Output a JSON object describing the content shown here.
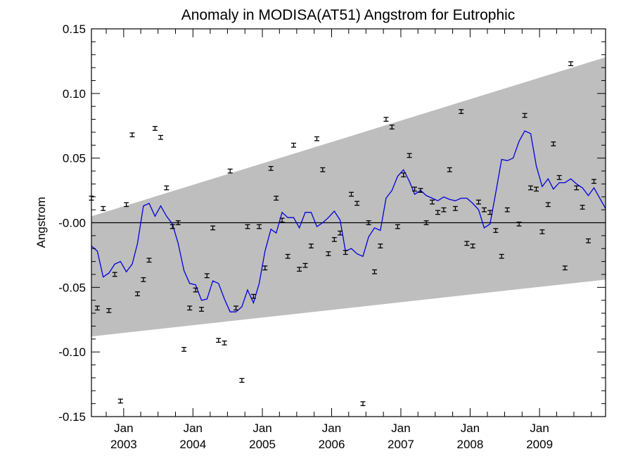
{
  "chart_data": {
    "type": "scatter",
    "title": "Anomaly in MODISA(AT51) Angstrom for Eutrophic",
    "xlabel": "",
    "ylabel": "Angstrom",
    "xlim": [
      "2002-07-15",
      "2009-12-15"
    ],
    "ylim": [
      -0.15,
      0.15
    ],
    "grid": false,
    "y_ticks": [
      {
        "value": 0.15,
        "label": "0.15"
      },
      {
        "value": 0.1,
        "label": "0.10"
      },
      {
        "value": 0.05,
        "label": "0.05"
      },
      {
        "value": 0.0,
        "label": "-0.00"
      },
      {
        "value": -0.05,
        "label": "-0.05"
      },
      {
        "value": -0.1,
        "label": "-0.10"
      },
      {
        "value": -0.15,
        "label": "-0.15"
      }
    ],
    "x_ticks": [
      {
        "date": "2003-01-01",
        "month": "Jan",
        "year": "2003"
      },
      {
        "date": "2004-01-01",
        "month": "Jan",
        "year": "2004"
      },
      {
        "date": "2005-01-01",
        "month": "Jan",
        "year": "2005"
      },
      {
        "date": "2006-01-01",
        "month": "Jan",
        "year": "2006"
      },
      {
        "date": "2007-01-01",
        "month": "Jan",
        "year": "2007"
      },
      {
        "date": "2008-01-01",
        "month": "Jan",
        "year": "2008"
      },
      {
        "date": "2009-01-01",
        "month": "Jan",
        "year": "2009"
      }
    ],
    "band": {
      "start": {
        "date": "2002-07-15",
        "upper": 0.005,
        "lower": -0.088
      },
      "end": {
        "date": "2009-12-15",
        "upper": 0.128,
        "lower": -0.044
      },
      "color": "#bebebe"
    },
    "zero_line": 0.0,
    "series": [
      {
        "kind": "points_with_error_bars",
        "error": 0.0015,
        "color": "#000000",
        "points": [
          {
            "x": "2002-07-15",
            "y": 0.019
          },
          {
            "x": "2002-08-15",
            "y": -0.066
          },
          {
            "x": "2002-09-15",
            "y": 0.011
          },
          {
            "x": "2002-10-15",
            "y": -0.068
          },
          {
            "x": "2002-11-15",
            "y": -0.04
          },
          {
            "x": "2002-12-15",
            "y": -0.138
          },
          {
            "x": "2003-01-15",
            "y": 0.014
          },
          {
            "x": "2003-02-15",
            "y": 0.068
          },
          {
            "x": "2003-03-15",
            "y": -0.055
          },
          {
            "x": "2003-04-15",
            "y": -0.044
          },
          {
            "x": "2003-05-15",
            "y": -0.029
          },
          {
            "x": "2003-06-15",
            "y": 0.073
          },
          {
            "x": "2003-07-15",
            "y": 0.066
          },
          {
            "x": "2003-08-15",
            "y": 0.027
          },
          {
            "x": "2003-09-15",
            "y": -0.003
          },
          {
            "x": "2003-10-15",
            "y": 0.0
          },
          {
            "x": "2003-11-15",
            "y": -0.098
          },
          {
            "x": "2003-12-15",
            "y": -0.066
          },
          {
            "x": "2004-01-15",
            "y": -0.052
          },
          {
            "x": "2004-02-15",
            "y": -0.067
          },
          {
            "x": "2004-03-15",
            "y": -0.041
          },
          {
            "x": "2004-04-15",
            "y": -0.004
          },
          {
            "x": "2004-05-15",
            "y": -0.091
          },
          {
            "x": "2004-06-15",
            "y": -0.093
          },
          {
            "x": "2004-07-15",
            "y": 0.04
          },
          {
            "x": "2004-08-15",
            "y": -0.066
          },
          {
            "x": "2004-09-15",
            "y": -0.122
          },
          {
            "x": "2004-10-15",
            "y": -0.003
          },
          {
            "x": "2004-11-15",
            "y": -0.057
          },
          {
            "x": "2004-12-15",
            "y": -0.003
          },
          {
            "x": "2005-01-15",
            "y": -0.035
          },
          {
            "x": "2005-02-15",
            "y": 0.042
          },
          {
            "x": "2005-03-15",
            "y": 0.019
          },
          {
            "x": "2005-04-15",
            "y": 0.002
          },
          {
            "x": "2005-05-15",
            "y": -0.026
          },
          {
            "x": "2005-06-15",
            "y": 0.06
          },
          {
            "x": "2005-07-15",
            "y": -0.036
          },
          {
            "x": "2005-08-15",
            "y": -0.033
          },
          {
            "x": "2005-09-15",
            "y": -0.018
          },
          {
            "x": "2005-10-15",
            "y": 0.065
          },
          {
            "x": "2005-11-15",
            "y": 0.041
          },
          {
            "x": "2005-12-15",
            "y": -0.024
          },
          {
            "x": "2006-01-15",
            "y": -0.013
          },
          {
            "x": "2006-02-15",
            "y": -0.008
          },
          {
            "x": "2006-03-15",
            "y": -0.023
          },
          {
            "x": "2006-04-15",
            "y": 0.022
          },
          {
            "x": "2006-05-15",
            "y": 0.015
          },
          {
            "x": "2006-06-15",
            "y": -0.14
          },
          {
            "x": "2006-07-15",
            "y": 0.0
          },
          {
            "x": "2006-08-15",
            "y": -0.038
          },
          {
            "x": "2006-09-15",
            "y": -0.018
          },
          {
            "x": "2006-10-15",
            "y": 0.08
          },
          {
            "x": "2006-11-15",
            "y": 0.074
          },
          {
            "x": "2006-12-15",
            "y": -0.003
          },
          {
            "x": "2007-01-15",
            "y": 0.037
          },
          {
            "x": "2007-02-15",
            "y": 0.052
          },
          {
            "x": "2007-03-15",
            "y": 0.026
          },
          {
            "x": "2007-04-15",
            "y": 0.025
          },
          {
            "x": "2007-05-15",
            "y": 0.0
          },
          {
            "x": "2007-06-15",
            "y": 0.016
          },
          {
            "x": "2007-07-15",
            "y": 0.008
          },
          {
            "x": "2007-08-15",
            "y": 0.01
          },
          {
            "x": "2007-09-15",
            "y": 0.041
          },
          {
            "x": "2007-10-15",
            "y": 0.011
          },
          {
            "x": "2007-11-15",
            "y": 0.086
          },
          {
            "x": "2007-12-15",
            "y": -0.016
          },
          {
            "x": "2008-01-15",
            "y": -0.018
          },
          {
            "x": "2008-02-15",
            "y": 0.016
          },
          {
            "x": "2008-03-15",
            "y": 0.01
          },
          {
            "x": "2008-04-15",
            "y": 0.008
          },
          {
            "x": "2008-05-15",
            "y": -0.006
          },
          {
            "x": "2008-06-15",
            "y": -0.026
          },
          {
            "x": "2008-07-15",
            "y": 0.01
          },
          {
            "x": "2008-09-15",
            "y": -0.001
          },
          {
            "x": "2008-10-15",
            "y": 0.083
          },
          {
            "x": "2008-11-15",
            "y": 0.027
          },
          {
            "x": "2008-12-15",
            "y": 0.026
          },
          {
            "x": "2009-01-15",
            "y": -0.007
          },
          {
            "x": "2009-02-15",
            "y": 0.014
          },
          {
            "x": "2009-03-15",
            "y": 0.061
          },
          {
            "x": "2009-04-15",
            "y": 0.035
          },
          {
            "x": "2009-05-15",
            "y": -0.035
          },
          {
            "x": "2009-06-15",
            "y": 0.123
          },
          {
            "x": "2009-07-15",
            "y": 0.027
          },
          {
            "x": "2009-08-15",
            "y": 0.012
          },
          {
            "x": "2009-09-15",
            "y": -0.014
          },
          {
            "x": "2009-10-15",
            "y": 0.032
          }
        ]
      },
      {
        "kind": "line",
        "color": "#0000dd",
        "points": [
          {
            "x": "2002-07-15",
            "y": -0.018
          },
          {
            "x": "2002-08-15",
            "y": -0.022
          },
          {
            "x": "2002-09-15",
            "y": -0.042
          },
          {
            "x": "2002-10-15",
            "y": -0.039
          },
          {
            "x": "2002-11-15",
            "y": -0.032
          },
          {
            "x": "2002-12-15",
            "y": -0.03
          },
          {
            "x": "2003-01-15",
            "y": -0.038
          },
          {
            "x": "2003-02-15",
            "y": -0.032
          },
          {
            "x": "2003-03-15",
            "y": -0.016
          },
          {
            "x": "2003-04-15",
            "y": 0.013
          },
          {
            "x": "2003-05-15",
            "y": 0.015
          },
          {
            "x": "2003-06-15",
            "y": 0.005
          },
          {
            "x": "2003-07-15",
            "y": 0.013
          },
          {
            "x": "2003-08-15",
            "y": 0.005
          },
          {
            "x": "2003-09-15",
            "y": -0.001
          },
          {
            "x": "2003-10-15",
            "y": -0.016
          },
          {
            "x": "2003-11-15",
            "y": -0.037
          },
          {
            "x": "2003-12-15",
            "y": -0.047
          },
          {
            "x": "2004-01-15",
            "y": -0.048
          },
          {
            "x": "2004-02-15",
            "y": -0.06
          },
          {
            "x": "2004-03-15",
            "y": -0.059
          },
          {
            "x": "2004-04-15",
            "y": -0.045
          },
          {
            "x": "2004-05-15",
            "y": -0.047
          },
          {
            "x": "2004-06-15",
            "y": -0.059
          },
          {
            "x": "2004-07-15",
            "y": -0.069
          },
          {
            "x": "2004-08-15",
            "y": -0.069
          },
          {
            "x": "2004-09-15",
            "y": -0.065
          },
          {
            "x": "2004-10-15",
            "y": -0.052
          },
          {
            "x": "2004-11-15",
            "y": -0.062
          },
          {
            "x": "2004-12-15",
            "y": -0.047
          },
          {
            "x": "2005-01-15",
            "y": -0.022
          },
          {
            "x": "2005-02-15",
            "y": -0.005
          },
          {
            "x": "2005-03-15",
            "y": -0.008
          },
          {
            "x": "2005-04-15",
            "y": 0.008
          },
          {
            "x": "2005-05-15",
            "y": 0.004
          },
          {
            "x": "2005-06-15",
            "y": 0.004
          },
          {
            "x": "2005-07-15",
            "y": -0.004
          },
          {
            "x": "2005-08-15",
            "y": 0.008
          },
          {
            "x": "2005-09-15",
            "y": 0.008
          },
          {
            "x": "2005-10-15",
            "y": -0.003
          },
          {
            "x": "2005-11-15",
            "y": 0.0
          },
          {
            "x": "2005-12-15",
            "y": 0.004
          },
          {
            "x": "2006-01-15",
            "y": 0.009
          },
          {
            "x": "2006-02-15",
            "y": 0.002
          },
          {
            "x": "2006-03-15",
            "y": -0.022
          },
          {
            "x": "2006-04-15",
            "y": -0.02
          },
          {
            "x": "2006-05-15",
            "y": -0.024
          },
          {
            "x": "2006-06-15",
            "y": -0.026
          },
          {
            "x": "2006-07-15",
            "y": -0.011
          },
          {
            "x": "2006-08-15",
            "y": -0.004
          },
          {
            "x": "2006-09-15",
            "y": -0.006
          },
          {
            "x": "2006-10-15",
            "y": 0.019
          },
          {
            "x": "2006-11-15",
            "y": 0.025
          },
          {
            "x": "2006-12-15",
            "y": 0.036
          },
          {
            "x": "2007-01-15",
            "y": 0.041
          },
          {
            "x": "2007-02-15",
            "y": 0.032
          },
          {
            "x": "2007-03-15",
            "y": 0.022
          },
          {
            "x": "2007-04-15",
            "y": 0.025
          },
          {
            "x": "2007-05-15",
            "y": 0.021
          },
          {
            "x": "2007-06-15",
            "y": 0.019
          },
          {
            "x": "2007-07-15",
            "y": 0.017
          },
          {
            "x": "2007-08-15",
            "y": 0.02
          },
          {
            "x": "2007-09-15",
            "y": 0.018
          },
          {
            "x": "2007-10-15",
            "y": 0.017
          },
          {
            "x": "2007-11-15",
            "y": 0.019
          },
          {
            "x": "2007-12-15",
            "y": 0.019
          },
          {
            "x": "2008-01-15",
            "y": 0.015
          },
          {
            "x": "2008-02-15",
            "y": 0.01
          },
          {
            "x": "2008-03-15",
            "y": -0.004
          },
          {
            "x": "2008-04-15",
            "y": -0.001
          },
          {
            "x": "2008-05-15",
            "y": 0.023
          },
          {
            "x": "2008-06-15",
            "y": 0.049
          },
          {
            "x": "2008-07-15",
            "y": 0.048
          },
          {
            "x": "2008-08-15",
            "y": 0.05
          },
          {
            "x": "2008-09-15",
            "y": 0.063
          },
          {
            "x": "2008-10-15",
            "y": 0.071
          },
          {
            "x": "2008-11-15",
            "y": 0.069
          },
          {
            "x": "2008-12-15",
            "y": 0.044
          },
          {
            "x": "2009-01-15",
            "y": 0.028
          },
          {
            "x": "2009-02-15",
            "y": 0.034
          },
          {
            "x": "2009-03-15",
            "y": 0.026
          },
          {
            "x": "2009-04-15",
            "y": 0.031
          },
          {
            "x": "2009-05-15",
            "y": 0.031
          },
          {
            "x": "2009-06-15",
            "y": 0.034
          },
          {
            "x": "2009-07-15",
            "y": 0.03
          },
          {
            "x": "2009-08-15",
            "y": 0.027
          },
          {
            "x": "2009-09-15",
            "y": 0.021
          },
          {
            "x": "2009-10-15",
            "y": 0.027
          },
          {
            "x": "2009-12-15",
            "y": 0.011
          }
        ]
      }
    ]
  }
}
